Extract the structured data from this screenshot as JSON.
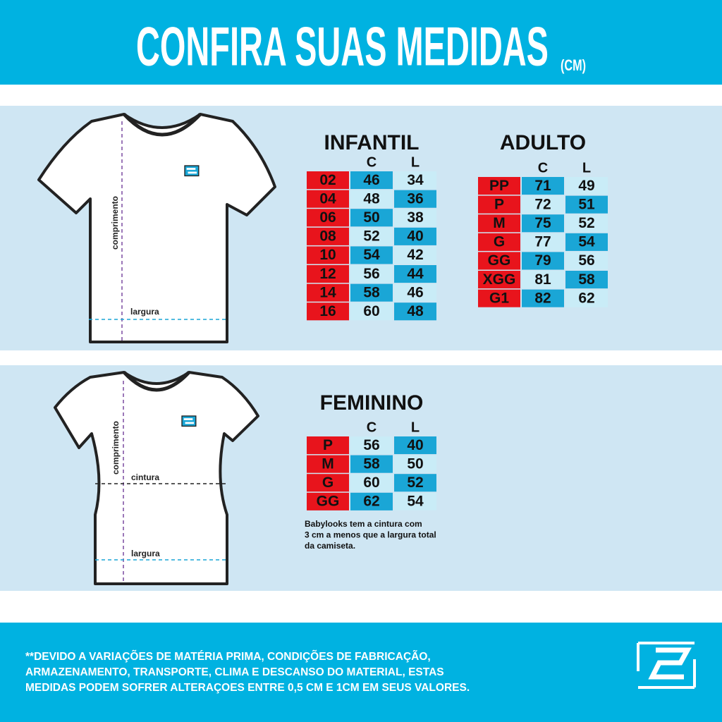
{
  "header": {
    "title": "CONFIRA SUAS MEDIDAS",
    "unit": "(CM)"
  },
  "shirt_unisex": {
    "length_label": "comprimento",
    "width_label": "largura"
  },
  "shirt_feminine": {
    "length_label": "comprimento",
    "waist_label": "cintura",
    "width_label": "largura"
  },
  "tables": {
    "infantil": {
      "title": "INFANTIL",
      "columns": [
        "C",
        "L"
      ],
      "rows": [
        [
          "02",
          46,
          34
        ],
        [
          "04",
          48,
          36
        ],
        [
          "06",
          50,
          38
        ],
        [
          "08",
          52,
          40
        ],
        [
          "10",
          54,
          42
        ],
        [
          "12",
          56,
          44
        ],
        [
          "14",
          58,
          46
        ],
        [
          "16",
          60,
          48
        ]
      ]
    },
    "adulto": {
      "title": "ADULTO",
      "columns": [
        "C",
        "L"
      ],
      "rows": [
        [
          "PP",
          71,
          49
        ],
        [
          "P",
          72,
          51
        ],
        [
          "M",
          75,
          52
        ],
        [
          "G",
          77,
          54
        ],
        [
          "GG",
          79,
          56
        ],
        [
          "XGG",
          81,
          58
        ],
        [
          "G1",
          82,
          62
        ]
      ]
    },
    "feminino": {
      "title": "FEMININO",
      "columns": [
        "C",
        "L"
      ],
      "rows": [
        [
          "P",
          56,
          40
        ],
        [
          "M",
          58,
          50
        ],
        [
          "G",
          60,
          52
        ],
        [
          "GG",
          62,
          54
        ]
      ],
      "note": [
        "Babylooks tem a cintura com",
        "3 cm a menos que a largura total",
        "da camiseta."
      ]
    }
  },
  "footer": {
    "lines": [
      "**DEVIDO A VARIAÇÕES DE MATÉRIA PRIMA, CONDIÇÕES DE FABRICAÇÃO,",
      "ARMAZENAMENTO, TRANSPORTE, CLIMA E DESCANSO DO MATERIAL, ESTAS",
      "MEDIDAS PODEM SOFRER ALTERAÇOES ENTRE 0,5 CM E 1CM EM SEUS VALORES."
    ]
  }
}
